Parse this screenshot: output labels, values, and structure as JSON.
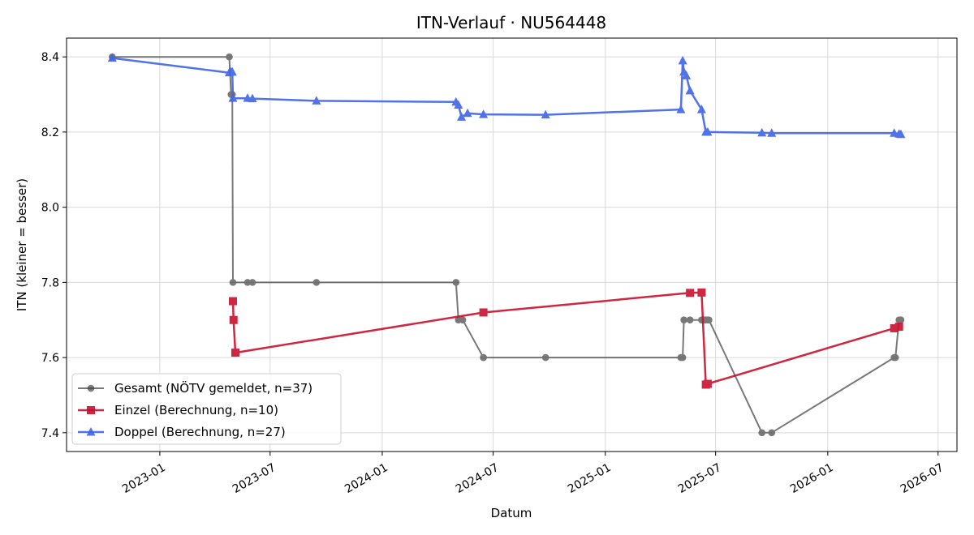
{
  "chart_data": {
    "type": "line",
    "title": "ITN-Verlauf · NU564448",
    "xlabel": "Datum",
    "ylabel": "ITN  (kleiner = besser)",
    "x_axis_type": "date",
    "xlim": [
      "2022-08-01",
      "2026-08-01"
    ],
    "ylim": [
      7.35,
      8.45
    ],
    "x_ticks": [
      "2023-01",
      "2023-07",
      "2024-01",
      "2024-07",
      "2025-01",
      "2025-07",
      "2026-01",
      "2026-07"
    ],
    "y_ticks": [
      "7.4",
      "7.6",
      "7.8",
      "8.0",
      "8.2",
      "8.4"
    ],
    "grid": true,
    "legend_position": "lower left",
    "series": [
      {
        "name": "Gesamt (NÖTV gemeldet, n=37)",
        "color": "#404040",
        "marker": "circle",
        "points": [
          [
            "2022-10-15",
            8.4
          ],
          [
            "2023-04-25",
            8.4
          ],
          [
            "2023-04-28",
            8.3
          ],
          [
            "2023-04-30",
            8.3
          ],
          [
            "2023-05-01",
            7.8
          ],
          [
            "2023-05-25",
            7.8
          ],
          [
            "2023-06-02",
            7.8
          ],
          [
            "2023-09-15",
            7.8
          ],
          [
            "2024-05-01",
            7.8
          ],
          [
            "2024-05-05",
            7.7
          ],
          [
            "2024-05-12",
            7.7
          ],
          [
            "2024-06-15",
            7.6
          ],
          [
            "2024-06-15",
            7.6
          ],
          [
            "2024-09-25",
            7.6
          ],
          [
            "2025-05-05",
            7.6
          ],
          [
            "2025-05-08",
            7.6
          ],
          [
            "2025-05-10",
            7.7
          ],
          [
            "2025-05-20",
            7.7
          ],
          [
            "2025-06-08",
            7.7
          ],
          [
            "2025-06-12",
            7.7
          ],
          [
            "2025-06-15",
            7.7
          ],
          [
            "2025-06-18",
            7.7
          ],
          [
            "2025-06-20",
            7.7
          ],
          [
            "2025-09-15",
            7.4
          ],
          [
            "2025-10-01",
            7.4
          ],
          [
            "2026-04-20",
            7.6
          ],
          [
            "2026-04-22",
            7.6
          ],
          [
            "2026-04-28",
            7.7
          ],
          [
            "2026-05-01",
            7.7
          ]
        ]
      },
      {
        "name": "Einzel (Berechnung, n=10)",
        "color": "#c8102e",
        "marker": "square",
        "points": [
          [
            "2023-05-01",
            7.75
          ],
          [
            "2023-05-02",
            7.7
          ],
          [
            "2023-05-05",
            7.613
          ],
          [
            "2024-06-15",
            7.72
          ],
          [
            "2025-05-20",
            7.772
          ],
          [
            "2025-06-08",
            7.773
          ],
          [
            "2025-06-15",
            7.528
          ],
          [
            "2025-06-18",
            7.53
          ],
          [
            "2026-04-20",
            7.678
          ],
          [
            "2026-04-28",
            7.682
          ]
        ]
      },
      {
        "name": "Doppel (Berechnung, n=27)",
        "color": "#3f63e6",
        "marker": "triangle",
        "points": [
          [
            "2022-10-15",
            8.397
          ],
          [
            "2023-04-25",
            8.358
          ],
          [
            "2023-04-28",
            8.36
          ],
          [
            "2023-04-30",
            8.36
          ],
          [
            "2023-05-01",
            8.29
          ],
          [
            "2023-05-25",
            8.29
          ],
          [
            "2023-06-02",
            8.289
          ],
          [
            "2023-09-15",
            8.283
          ],
          [
            "2024-05-01",
            8.28
          ],
          [
            "2024-05-05",
            8.272
          ],
          [
            "2024-05-10",
            8.24
          ],
          [
            "2024-05-20",
            8.25
          ],
          [
            "2024-06-15",
            8.247
          ],
          [
            "2024-09-25",
            8.246
          ],
          [
            "2025-05-05",
            8.26
          ],
          [
            "2025-05-08",
            8.39
          ],
          [
            "2025-05-10",
            8.36
          ],
          [
            "2025-05-14",
            8.35
          ],
          [
            "2025-05-20",
            8.31
          ],
          [
            "2025-06-08",
            8.26
          ],
          [
            "2025-06-15",
            8.2
          ],
          [
            "2025-06-18",
            8.2
          ],
          [
            "2025-09-15",
            8.198
          ],
          [
            "2025-10-01",
            8.197
          ],
          [
            "2026-04-20",
            8.197
          ],
          [
            "2026-04-28",
            8.195
          ],
          [
            "2026-05-01",
            8.194
          ]
        ]
      }
    ]
  }
}
